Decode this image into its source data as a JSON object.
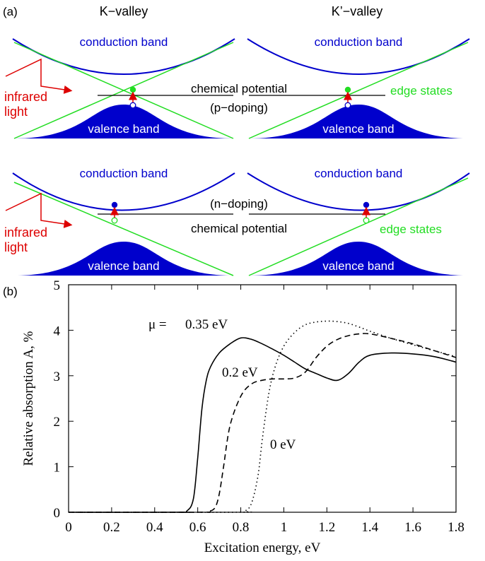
{
  "panel_a": {
    "label": "(a)",
    "k_valley": "K−valley",
    "kp_valley": "K’−valley",
    "conduction_band": "conduction band",
    "valence_band": "valence band",
    "chemical_potential": "chemical potential",
    "p_doping": "(p−doping)",
    "n_doping": "(n−doping)",
    "edge_states": "edge states",
    "infrared_line1": "infrared",
    "infrared_line2": "light",
    "colors": {
      "band": "#0000cc",
      "edge": "#22dd22",
      "arrow": "#dd0000",
      "line": "#000000"
    }
  },
  "panel_b": {
    "label": "(b)",
    "mu_prefix": "μ = ",
    "mu_value": "0.35 eV",
    "label_02": "0.2 eV",
    "label_0": "0 eV"
  },
  "chart_data": {
    "type": "line",
    "xlabel": "Excitation energy, eV",
    "ylabel": "Relative absorption A, %",
    "xlim": [
      0,
      1.8
    ],
    "ylim": [
      0,
      5
    ],
    "xticks": [
      "0",
      "0.2",
      "0.4",
      "0.6",
      "0.8",
      "1",
      "1.2",
      "1.4",
      "1.6",
      "1.8"
    ],
    "yticks": [
      "0",
      "1",
      "2",
      "3",
      "4",
      "5"
    ],
    "grid": false,
    "series": [
      {
        "name": "0.35 eV",
        "style": "solid",
        "x": [
          0,
          0.5,
          0.55,
          0.58,
          0.6,
          0.62,
          0.64,
          0.66,
          0.7,
          0.75,
          0.8,
          0.85,
          0.9,
          0.95,
          1.0,
          1.05,
          1.1,
          1.15,
          1.2,
          1.25,
          1.3,
          1.35,
          1.4,
          1.5,
          1.6,
          1.7,
          1.8
        ],
        "y": [
          0,
          0,
          0.03,
          0.3,
          1.2,
          2.3,
          2.9,
          3.2,
          3.5,
          3.7,
          3.83,
          3.8,
          3.7,
          3.58,
          3.45,
          3.3,
          3.15,
          3.05,
          2.95,
          2.9,
          3.05,
          3.3,
          3.45,
          3.5,
          3.48,
          3.42,
          3.3
        ]
      },
      {
        "name": "0.2 eV",
        "style": "dashed",
        "x": [
          0,
          0.6,
          0.65,
          0.68,
          0.7,
          0.72,
          0.75,
          0.8,
          0.85,
          0.9,
          0.95,
          1.0,
          1.05,
          1.1,
          1.15,
          1.2,
          1.25,
          1.3,
          1.35,
          1.4,
          1.5,
          1.6,
          1.7,
          1.8
        ],
        "y": [
          0,
          0,
          0.02,
          0.1,
          0.4,
          1.0,
          1.9,
          2.55,
          2.82,
          2.9,
          2.93,
          2.93,
          2.95,
          3.08,
          3.4,
          3.65,
          3.8,
          3.88,
          3.92,
          3.92,
          3.82,
          3.7,
          3.55,
          3.4
        ]
      },
      {
        "name": "0 eV",
        "style": "dotted",
        "x": [
          0,
          0.78,
          0.82,
          0.85,
          0.88,
          0.9,
          0.93,
          0.96,
          1.0,
          1.05,
          1.1,
          1.15,
          1.2,
          1.25,
          1.3,
          1.35,
          1.4,
          1.5,
          1.6,
          1.7,
          1.8
        ],
        "y": [
          0,
          0,
          0.03,
          0.2,
          0.8,
          1.6,
          2.6,
          3.2,
          3.65,
          3.95,
          4.12,
          4.18,
          4.2,
          4.19,
          4.15,
          4.07,
          3.98,
          3.82,
          3.68,
          3.55,
          3.42
        ]
      }
    ]
  }
}
